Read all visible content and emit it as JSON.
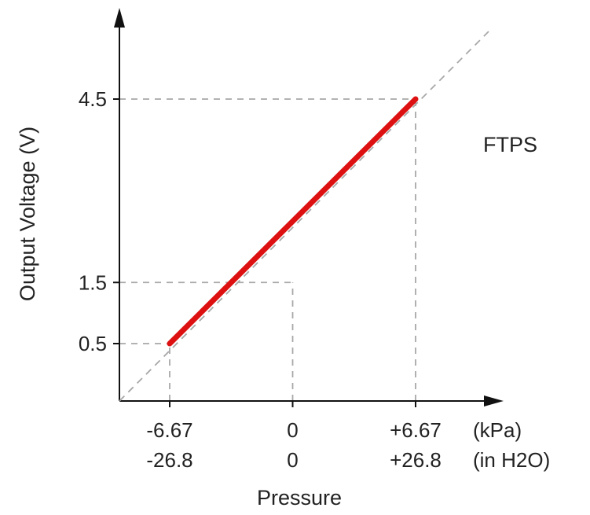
{
  "chart_data": {
    "type": "line",
    "series": [
      {
        "name": "FTPS",
        "points": [
          {
            "x": -6.67,
            "y": 0.5
          },
          {
            "x": 6.67,
            "y": 4.5
          }
        ]
      }
    ],
    "reference_line": "dashed diagonal extension through the transfer line",
    "ylabel": "Output Voltage (V)",
    "xlabel": "Pressure",
    "y_ticks": [
      "0.5",
      "1.5",
      "4.5"
    ],
    "x_ticks_kpa": [
      "-6.67",
      "0",
      "+6.67"
    ],
    "x_ticks_inh2o": [
      "-26.8",
      "0",
      "+26.8"
    ],
    "x_units_kpa": "(kPa)",
    "x_units_inh2o": "(in H2O)",
    "grid": "dashed guides at labeled points",
    "legend": "none",
    "colors": {
      "series": "#dd1111",
      "axis": "#111111",
      "guide": "#a8a8a8",
      "text": "#222222"
    }
  }
}
